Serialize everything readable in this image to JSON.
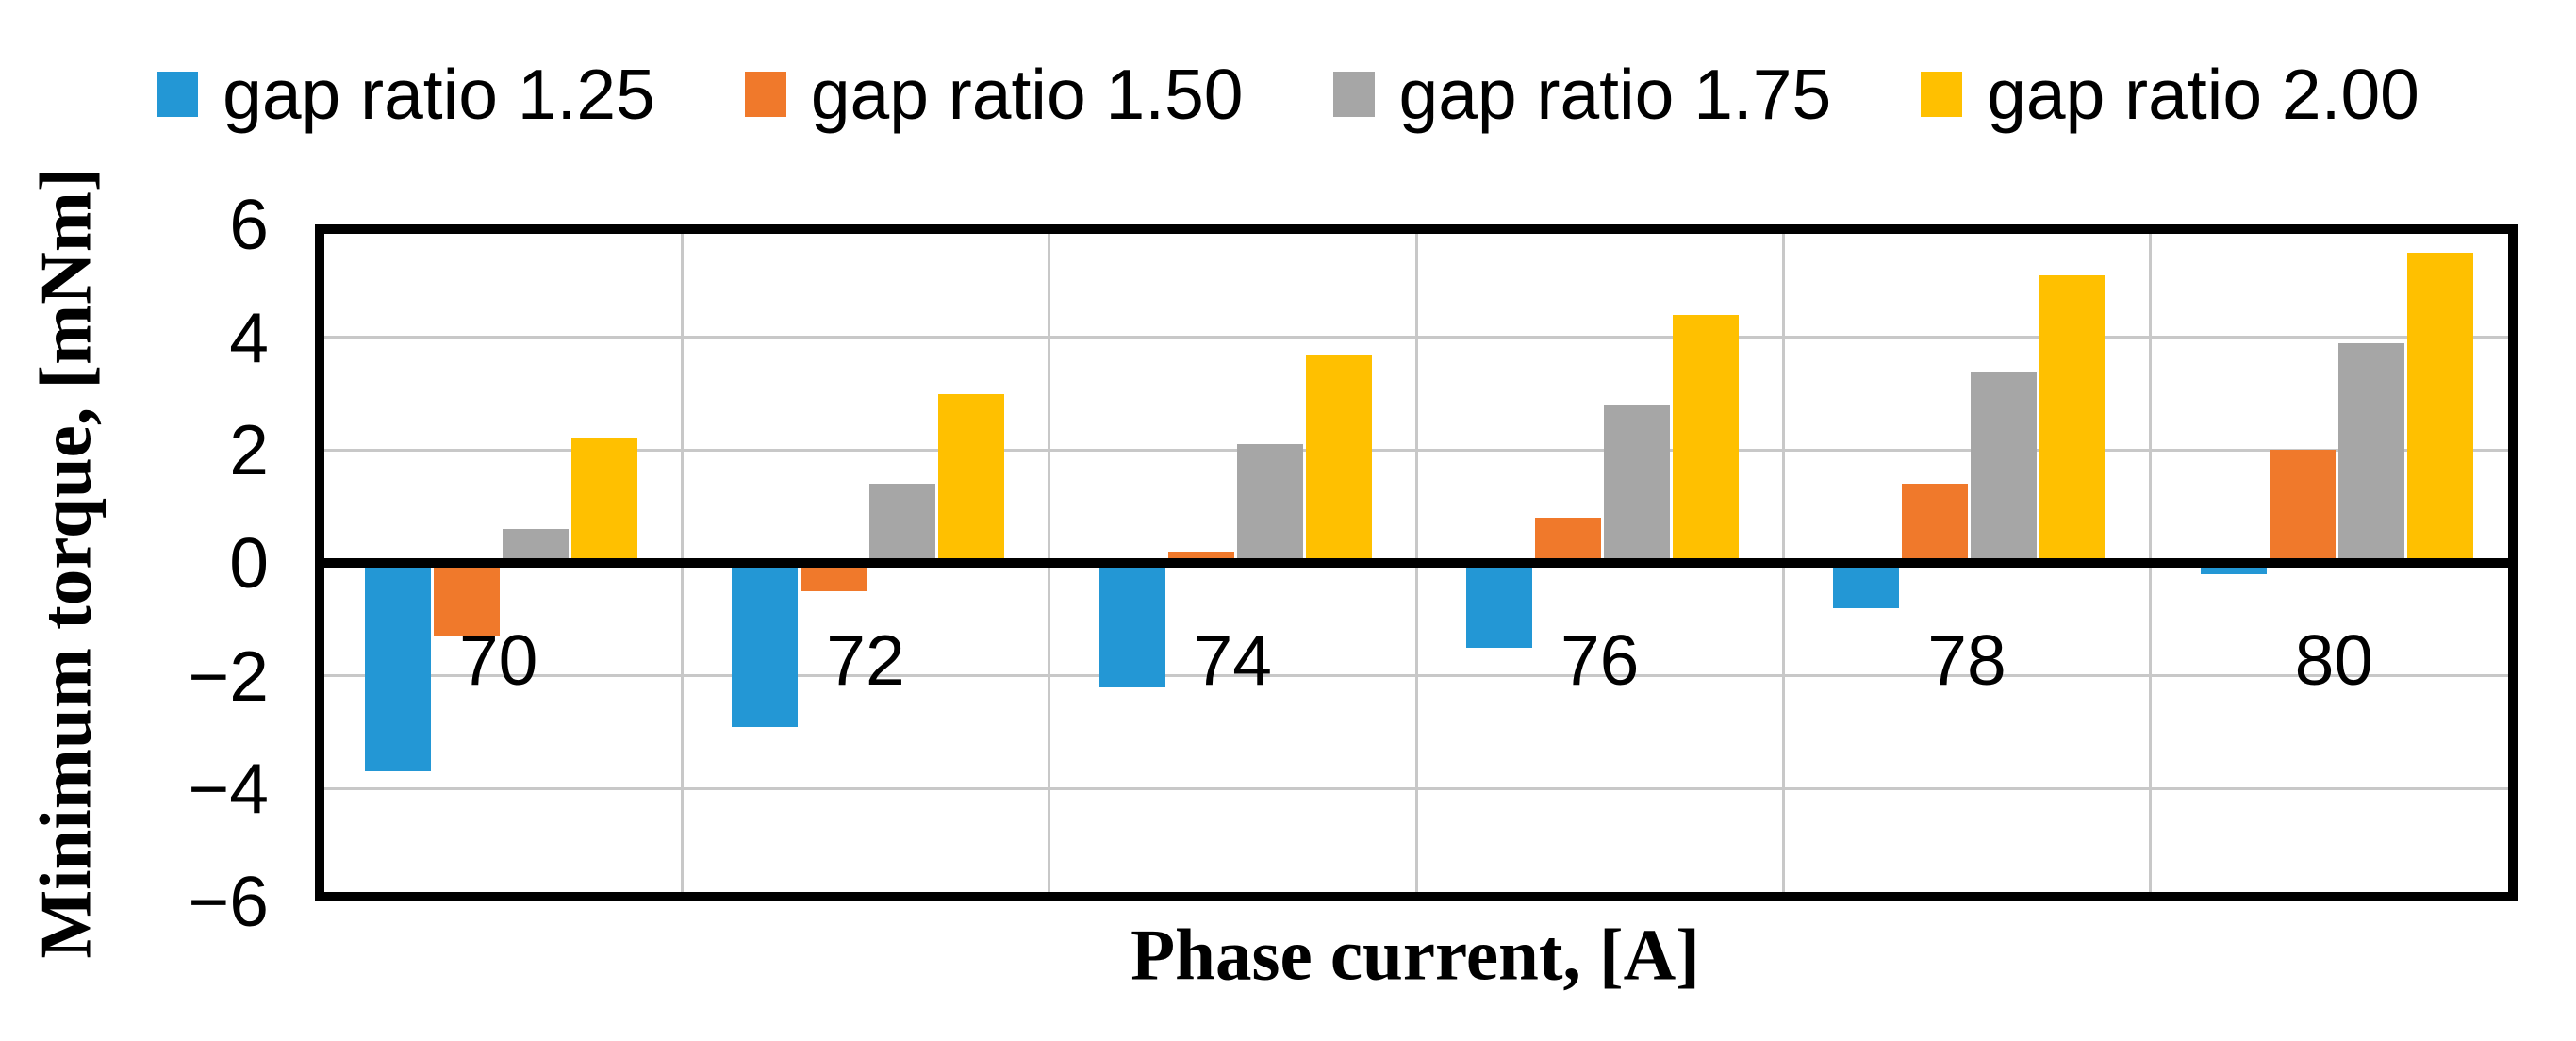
{
  "chart_data": {
    "type": "bar",
    "title": "",
    "categories": [
      "70",
      "72",
      "74",
      "76",
      "78",
      "80"
    ],
    "series": [
      {
        "name": "gap ratio 1.25",
        "color": "#2397d5",
        "values": [
          -3.7,
          -2.9,
          -2.2,
          -1.5,
          -0.8,
          -0.2
        ]
      },
      {
        "name": "gap ratio 1.50",
        "color": "#f0792b",
        "values": [
          -1.3,
          -0.5,
          0.2,
          0.8,
          1.4,
          2.0
        ]
      },
      {
        "name": "gap ratio 1.75",
        "color": "#a6a6a6",
        "values": [
          0.6,
          1.4,
          2.1,
          2.8,
          3.4,
          3.9
        ]
      },
      {
        "name": "gap ratio 2.00",
        "color": "#ffc000",
        "values": [
          2.2,
          3.0,
          3.7,
          4.4,
          5.1,
          5.5
        ]
      }
    ],
    "xlabel": "Phase current, [A]",
    "ylabel": "Minimum torque, [mNm]",
    "ylim": [
      -6,
      6
    ],
    "ytick_step": 2,
    "grid": true,
    "legend_position": "top"
  },
  "y_axis": {
    "title": "Minimum torque, [mNm]",
    "tick_labels": [
      "6",
      "4",
      "2",
      "0",
      "−2",
      "−4",
      "−6"
    ],
    "tick_values": [
      6,
      4,
      2,
      0,
      -2,
      -4,
      -6
    ]
  },
  "x_axis": {
    "title": "Phase current, [A]",
    "categories": [
      "70",
      "72",
      "74",
      "76",
      "78",
      "80"
    ]
  },
  "legend": {
    "items": [
      {
        "label": "gap ratio 1.25",
        "color": "#2397d5"
      },
      {
        "label": "gap ratio 1.50",
        "color": "#f0792b"
      },
      {
        "label": "gap ratio 1.75",
        "color": "#a6a6a6"
      },
      {
        "label": "gap ratio 2.00",
        "color": "#ffc000"
      }
    ]
  },
  "colors": {
    "axis_and_frame": "#000000",
    "gridline": "#c8c8c8",
    "background": "#ffffff",
    "text": "#000000"
  }
}
